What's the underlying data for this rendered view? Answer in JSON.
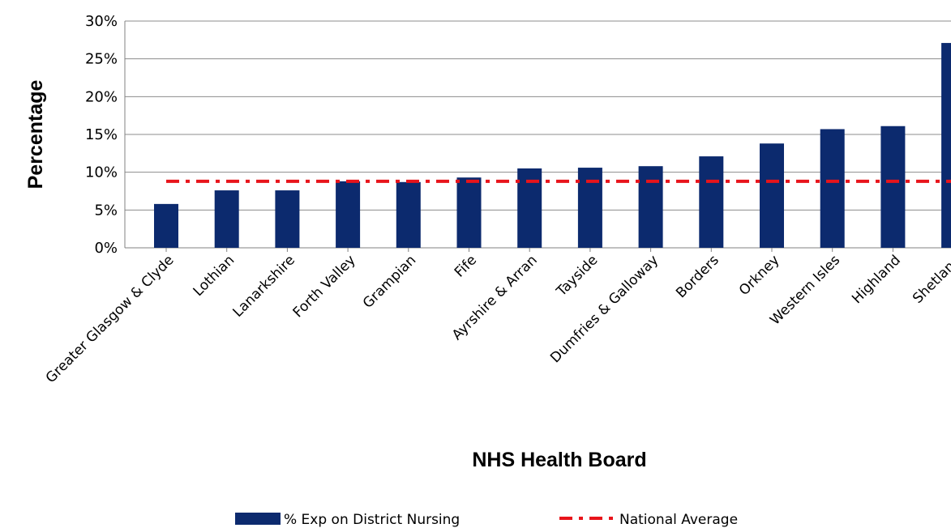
{
  "chart_data": {
    "type": "bar",
    "title": "",
    "xlabel": "NHS Health Board",
    "ylabel": "Percentage",
    "ylim": [
      0,
      30
    ],
    "yticks": [
      0,
      5,
      10,
      15,
      20,
      25,
      30
    ],
    "ytick_labels": [
      "0%",
      "5%",
      "10%",
      "15%",
      "20%",
      "25%",
      "30%"
    ],
    "categories": [
      "Greater Glasgow & Clyde",
      "Lothian",
      "Lanarkshire",
      "Forth Valley",
      "Grampian",
      "Fife",
      "Ayrshire & Arran",
      "Tayside",
      "Dumfries & Galloway",
      "Borders",
      "Orkney",
      "Western Isles",
      "Highland",
      "Shetland"
    ],
    "series": [
      {
        "name": "% Exp on District Nursing",
        "type": "bar",
        "color": "#0c2a6e",
        "values": [
          5.8,
          7.6,
          7.6,
          8.8,
          8.7,
          9.3,
          10.5,
          10.6,
          10.8,
          12.1,
          13.8,
          15.7,
          16.1,
          27.1
        ]
      },
      {
        "name": "National Average",
        "type": "line",
        "style": "dash-dot",
        "color": "#e8141b",
        "value": 8.8
      }
    ],
    "grid": true,
    "legend_position": "bottom"
  }
}
